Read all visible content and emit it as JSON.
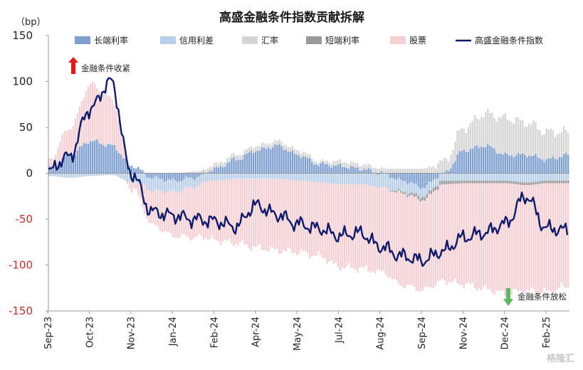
{
  "chart_data": {
    "type": "bar",
    "title": "高盛金融条件指数贡献拆解",
    "ylabel": "（bp）",
    "ylim": [
      -150,
      150
    ],
    "yticks": [
      150,
      100,
      50,
      0,
      -50,
      -100,
      -150
    ],
    "x_tick_labels": [
      "Sep-23",
      "Oct-23",
      "Nov-23",
      "Jan-24",
      "Feb-24",
      "Apr-24",
      "May-24",
      "Jul-24",
      "Aug-24",
      "Sep-24",
      "Nov-24",
      "Dec-24",
      "Feb-25"
    ],
    "legend": [
      {
        "name": "长端利率",
        "kind": "bar",
        "color": "#7e9fcf"
      },
      {
        "name": "信用利差",
        "kind": "bar",
        "color": "#b8cfe9"
      },
      {
        "name": "汇率",
        "kind": "bar",
        "color": "#d6d6d6"
      },
      {
        "name": "短端利率",
        "kind": "bar",
        "color": "#9a9a9a"
      },
      {
        "name": "股票",
        "kind": "bar",
        "color": "#f5d0d3"
      },
      {
        "name": "高盛金融条件指数",
        "kind": "line",
        "color": "#0d1a6e"
      }
    ],
    "series": [
      {
        "name": "长端利率",
        "values": [
          5,
          20,
          35,
          30,
          8,
          -5,
          -8,
          -5,
          5,
          15,
          25,
          30,
          20,
          10,
          8,
          5,
          0,
          -8,
          -15,
          0,
          25,
          30,
          20,
          20,
          15,
          20
        ]
      },
      {
        "name": "信用利差",
        "values": [
          -3,
          -5,
          -3,
          -2,
          -10,
          -14,
          -12,
          -10,
          -8,
          -6,
          -6,
          -6,
          -8,
          -10,
          -12,
          -12,
          -15,
          -12,
          -10,
          -8,
          -8,
          -8,
          -8,
          -10,
          -8,
          -8
        ]
      },
      {
        "name": "汇率",
        "values": [
          0,
          0,
          2,
          1,
          0,
          0,
          0,
          2,
          5,
          5,
          5,
          5,
          5,
          3,
          5,
          5,
          5,
          5,
          5,
          12,
          25,
          35,
          40,
          35,
          30,
          25
        ]
      },
      {
        "name": "短端利率",
        "values": [
          0,
          0,
          0,
          0,
          0,
          0,
          0,
          0,
          0,
          0,
          0,
          0,
          0,
          0,
          0,
          0,
          0,
          -2,
          -4,
          -4,
          -3,
          -3,
          -3,
          -3,
          -3,
          -3
        ]
      },
      {
        "name": "股票",
        "values": [
          10,
          30,
          60,
          50,
          -8,
          -38,
          -48,
          -55,
          -65,
          -70,
          -75,
          -78,
          -78,
          -80,
          -90,
          -92,
          -92,
          -100,
          -98,
          -105,
          -110,
          -115,
          -120,
          -115,
          -118,
          -112
        ]
      },
      {
        "name": "高盛金融条件指数",
        "values": [
          5,
          18,
          70,
          100,
          0,
          -42,
          -46,
          -50,
          -52,
          -58,
          -35,
          -45,
          -55,
          -60,
          -68,
          -65,
          -80,
          -90,
          -95,
          -85,
          -70,
          -65,
          -55,
          -25,
          -60,
          -62
        ]
      }
    ],
    "annotations": [
      {
        "text": "金融条件收紧",
        "direction": "up",
        "arrow_color": "#e41a1c"
      },
      {
        "text": "金融条件放松",
        "direction": "down",
        "arrow_color": "#5cb85c"
      }
    ]
  },
  "watermark": "格隆汇"
}
